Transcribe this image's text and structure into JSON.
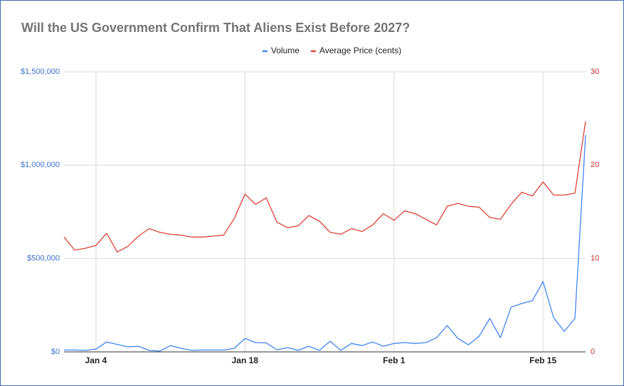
{
  "chart_data": {
    "type": "line",
    "title": "Will the US Government Confirm That Aliens Exist Before 2027?",
    "categories": [
      null,
      null,
      null,
      "Jan 4",
      null,
      null,
      null,
      null,
      null,
      null,
      null,
      null,
      null,
      null,
      null,
      null,
      null,
      "Jan 18",
      null,
      null,
      null,
      null,
      null,
      null,
      null,
      null,
      null,
      null,
      null,
      null,
      null,
      "Feb 1",
      null,
      null,
      null,
      null,
      null,
      null,
      null,
      null,
      null,
      null,
      null,
      null,
      null,
      "Feb 15",
      null,
      null,
      null,
      null
    ],
    "series": [
      {
        "name": "Volume",
        "color": "#4285f4",
        "axis": "y",
        "values": [
          10000,
          10000,
          8000,
          15000,
          53000,
          40000,
          27000,
          30000,
          8000,
          4000,
          34000,
          19000,
          8000,
          10000,
          10000,
          10000,
          19000,
          72000,
          50000,
          48000,
          11000,
          23000,
          8000,
          30000,
          8000,
          57000,
          8000,
          45000,
          34000,
          53000,
          30000,
          45000,
          50000,
          45000,
          50000,
          76000,
          141000,
          72000,
          38000,
          84000,
          179000,
          76000,
          240000,
          259000,
          274000,
          377000,
          183000,
          110000,
          179000,
          1161000
        ]
      },
      {
        "name": "Average Price (cents)",
        "color": "#db4437",
        "axis": "y2",
        "values": [
          12.3,
          10.9,
          11.1,
          11.4,
          12.7,
          10.7,
          11.3,
          12.4,
          13.2,
          12.8,
          12.6,
          12.5,
          12.3,
          12.3,
          12.4,
          12.5,
          14.3,
          16.9,
          15.8,
          16.5,
          13.9,
          13.3,
          13.5,
          14.6,
          14.0,
          12.8,
          12.6,
          13.2,
          12.9,
          13.6,
          14.8,
          14.1,
          15.1,
          14.8,
          14.2,
          13.6,
          15.6,
          15.9,
          15.6,
          15.5,
          14.4,
          14.2,
          15.8,
          17.1,
          16.7,
          18.2,
          16.8,
          16.8,
          17.0,
          24.7
        ]
      }
    ],
    "ylim": [
      0,
      1500000
    ],
    "yticks": [
      {
        "value": 0,
        "label": "$0"
      },
      {
        "value": 500000,
        "label": "$500,000"
      },
      {
        "value": 1000000,
        "label": "$1,000,000"
      },
      {
        "value": 1500000,
        "label": "$1,500,000"
      }
    ],
    "y2lim": [
      0,
      30
    ],
    "y2ticks": [
      0,
      10,
      20,
      30
    ],
    "grid": true,
    "legend": "top",
    "ytick_color": "#3d6fd1",
    "y2tick_color": "#cc2f2f"
  }
}
